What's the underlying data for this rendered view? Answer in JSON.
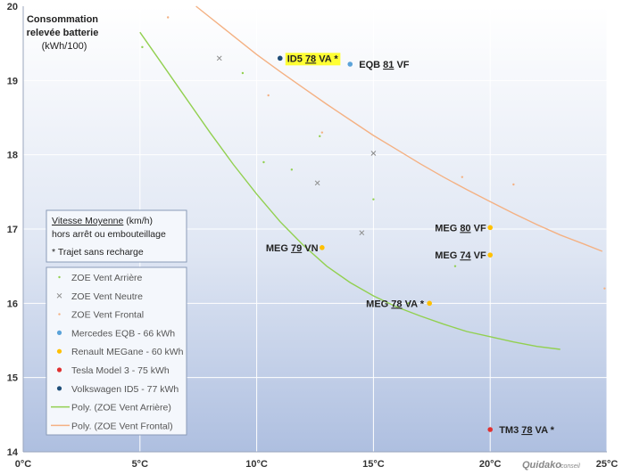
{
  "chart_data": {
    "type": "scatter",
    "ylabel_lines": [
      "Consommation",
      "relevée batterie",
      "(kWh/100)"
    ],
    "xlim": [
      0,
      25
    ],
    "ylim": [
      14,
      20
    ],
    "x_ticks": [
      0,
      5,
      10,
      15,
      20,
      25
    ],
    "x_tick_labels": [
      "0°C",
      "5°C",
      "10°C",
      "15°C",
      "20°C",
      "25°C"
    ],
    "y_ticks": [
      14,
      15,
      16,
      17,
      18,
      19,
      20
    ],
    "y_tick_labels": [
      "14",
      "15",
      "16",
      "17",
      "18",
      "19",
      "20"
    ],
    "grid": true,
    "legend_position": "left",
    "info_box": {
      "line1_underlined": "Vitesse Moyenne",
      "line1_rest": " (km/h)",
      "line2": "hors arrêt ou embouteillage",
      "line3": "* Trajet sans recharge"
    },
    "series": [
      {
        "name": "ZOE Vent Arrière",
        "marker": "dot",
        "color": "#92d050",
        "points": [
          [
            5.1,
            19.45
          ],
          [
            9.4,
            19.1
          ],
          [
            10.3,
            17.9
          ],
          [
            11.5,
            17.8
          ],
          [
            12.7,
            18.25
          ],
          [
            15.0,
            17.4
          ],
          [
            16.5,
            16.0
          ],
          [
            18.5,
            16.5
          ]
        ]
      },
      {
        "name": "ZOE Vent Neutre",
        "marker": "x",
        "color": "#8a8a8a",
        "points": [
          [
            8.4,
            19.3
          ],
          [
            12.6,
            17.62
          ],
          [
            14.5,
            16.95
          ],
          [
            15.0,
            18.02
          ]
        ]
      },
      {
        "name": "ZOE Vent Frontal",
        "marker": "dot",
        "color": "#f4b183",
        "points": [
          [
            6.2,
            19.85
          ],
          [
            10.5,
            18.8
          ],
          [
            12.8,
            18.3
          ],
          [
            18.8,
            17.7
          ],
          [
            21.0,
            17.6
          ],
          [
            24.9,
            16.2
          ]
        ]
      },
      {
        "name": "Mercedes EQB - 66 kWh",
        "marker": "dot",
        "color": "#5ba3d9",
        "points": [
          [
            14.0,
            19.22
          ]
        ]
      },
      {
        "name": "Renault MEGane - 60 kWh",
        "marker": "dot",
        "color": "#ffc000",
        "points": [
          [
            12.8,
            16.75
          ],
          [
            17.4,
            16.0
          ],
          [
            20.0,
            17.02
          ],
          [
            20.0,
            16.65
          ]
        ]
      },
      {
        "name": "Tesla Model 3 - 75 kWh",
        "marker": "dot",
        "color": "#e03030",
        "points": [
          [
            20.0,
            14.3
          ]
        ]
      },
      {
        "name": "Volkswagen ID5 - 77 kWh",
        "marker": "dot",
        "color": "#1f4e79",
        "points": [
          [
            11.0,
            19.3
          ]
        ]
      }
    ],
    "trendlines": [
      {
        "name": "Poly. (ZOE Vent Arrière)",
        "color": "#92d050",
        "points": [
          [
            5.0,
            19.65
          ],
          [
            6.0,
            19.2
          ],
          [
            7.0,
            18.75
          ],
          [
            8.0,
            18.3
          ],
          [
            9.0,
            17.87
          ],
          [
            10.0,
            17.47
          ],
          [
            11.0,
            17.1
          ],
          [
            12.0,
            16.78
          ],
          [
            13.0,
            16.5
          ],
          [
            14.0,
            16.28
          ],
          [
            15.0,
            16.1
          ],
          [
            16.0,
            15.95
          ],
          [
            17.0,
            15.83
          ],
          [
            18.0,
            15.72
          ],
          [
            19.0,
            15.62
          ],
          [
            20.0,
            15.55
          ],
          [
            21.0,
            15.48
          ],
          [
            22.0,
            15.42
          ],
          [
            23.0,
            15.38
          ]
        ]
      },
      {
        "name": "Poly. (ZOE Vent Frontal)",
        "color": "#f4b183",
        "points": [
          [
            7.4,
            20.0
          ],
          [
            8.0,
            19.85
          ],
          [
            9.0,
            19.6
          ],
          [
            10.0,
            19.35
          ],
          [
            11.0,
            19.12
          ],
          [
            12.0,
            18.9
          ],
          [
            13.0,
            18.68
          ],
          [
            14.0,
            18.47
          ],
          [
            15.0,
            18.26
          ],
          [
            16.0,
            18.07
          ],
          [
            17.0,
            17.88
          ],
          [
            18.0,
            17.7
          ],
          [
            19.0,
            17.53
          ],
          [
            20.0,
            17.37
          ],
          [
            21.0,
            17.21
          ],
          [
            22.0,
            17.06
          ],
          [
            23.0,
            16.92
          ],
          [
            24.0,
            16.8
          ],
          [
            24.8,
            16.7
          ]
        ]
      }
    ],
    "annotations": [
      {
        "speed": "78",
        "prefix": "ID5 ",
        "suffix": " VA *",
        "x": 11.0,
        "y": 19.3,
        "highlight": true
      },
      {
        "speed": "81",
        "prefix": "EQB ",
        "suffix": " VF",
        "x": 14.0,
        "y": 19.22,
        "highlight": false
      },
      {
        "speed": "80",
        "prefix": "MEG ",
        "suffix": " VF",
        "x": 20.0,
        "y": 17.02,
        "highlight": false
      },
      {
        "speed": "79",
        "prefix": "MEG ",
        "suffix": " VN",
        "x": 12.8,
        "y": 16.75,
        "highlight": false
      },
      {
        "speed": "74",
        "prefix": "MEG ",
        "suffix": " VF",
        "x": 20.0,
        "y": 16.65,
        "highlight": false
      },
      {
        "speed": "78",
        "prefix": "MEG ",
        "suffix": " VA *",
        "x": 17.4,
        "y": 16.0,
        "highlight": false
      },
      {
        "speed": "78",
        "prefix": "TM3 ",
        "suffix": " VA *",
        "x": 20.0,
        "y": 14.3,
        "highlight": false
      }
    ],
    "brand": "Quidako",
    "brand_suffix": "conseil"
  }
}
